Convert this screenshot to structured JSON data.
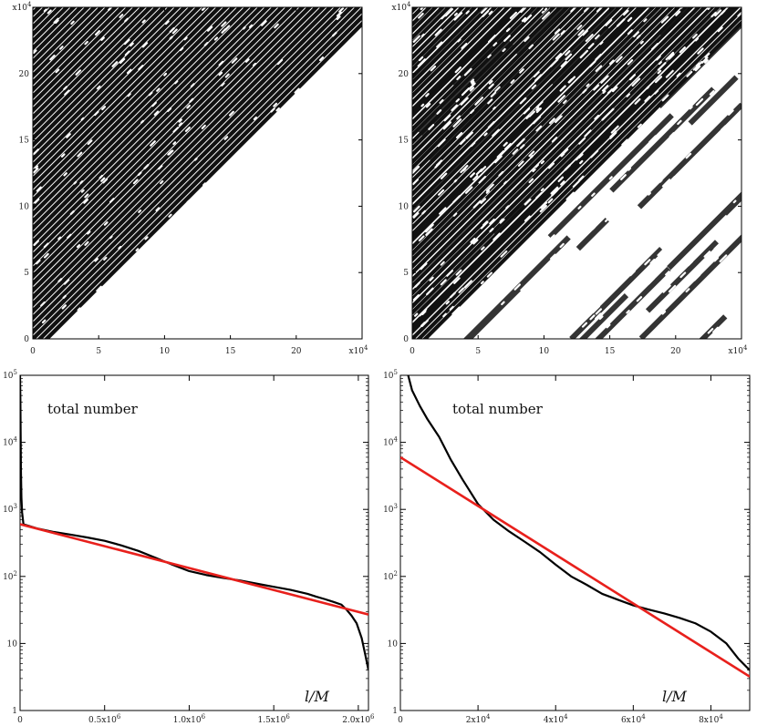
{
  "chart_data": [
    {
      "type": "heatmap",
      "panel": "top-left",
      "description_ticks": true,
      "xlim": [
        0,
        25
      ],
      "ylim": [
        0,
        25
      ],
      "x_ticks": [
        0,
        5,
        10,
        15,
        20
      ],
      "y_ticks": [
        0,
        5,
        10,
        15,
        20
      ],
      "x_multiplier": "x10",
      "x_multiplier_exp": "4",
      "y_multiplier": "x10",
      "y_multiplier_exp": "4",
      "pattern": "dense diagonal stripes with scattered white dots"
    },
    {
      "type": "heatmap",
      "panel": "top-right",
      "xlim": [
        0,
        25
      ],
      "ylim": [
        0,
        25
      ],
      "x_ticks": [
        0,
        5,
        10,
        15,
        20
      ],
      "y_ticks": [
        0,
        5,
        10,
        15,
        20
      ],
      "x_multiplier": "x10",
      "x_multiplier_exp": "4",
      "y_multiplier": "x10",
      "y_multiplier_exp": "4",
      "pattern": "irregular diagonal stripes with many white gaps"
    },
    {
      "type": "line",
      "panel": "bottom-left",
      "annotation": "total number",
      "xlabel": "l/M",
      "yscale": "log",
      "ylim": [
        1,
        100000
      ],
      "xlim": [
        0,
        2060000
      ],
      "x_ticks": [
        {
          "value": 0,
          "base": "0",
          "exp": ""
        },
        {
          "value": 500000,
          "base": "0.5x10",
          "exp": "6"
        },
        {
          "value": 1000000,
          "base": "1.0x10",
          "exp": "6"
        },
        {
          "value": 1500000,
          "base": "1.5x10",
          "exp": "6"
        },
        {
          "value": 2000000,
          "base": "2.0x10",
          "exp": "6"
        }
      ],
      "y_ticks": [
        {
          "value": 1,
          "base": "1",
          "exp": ""
        },
        {
          "value": 10,
          "base": "10",
          "exp": ""
        },
        {
          "value": 100,
          "base": "10",
          "exp": "2"
        },
        {
          "value": 1000,
          "base": "10",
          "exp": "3"
        },
        {
          "value": 10000,
          "base": "10",
          "exp": "4"
        },
        {
          "value": 100000,
          "base": "10",
          "exp": "5"
        }
      ],
      "series": [
        {
          "name": "data",
          "color": "#000000",
          "x": [
            0,
            2000,
            5000,
            8000,
            12000,
            20000,
            100000,
            200000,
            300000,
            400000,
            500000,
            600000,
            700000,
            800000,
            900000,
            1000000,
            1100000,
            1200000,
            1300000,
            1400000,
            1500000,
            1600000,
            1700000,
            1750000,
            1800000,
            1850000,
            1900000,
            1930000,
            1960000,
            1990000,
            2020000,
            2040000,
            2060000
          ],
          "y": [
            100000,
            40000,
            4000,
            1500,
            900,
            600,
            520,
            460,
            420,
            380,
            340,
            290,
            240,
            190,
            150,
            120,
            105,
            95,
            87,
            78,
            70,
            63,
            55,
            50,
            46,
            42,
            38,
            32,
            26,
            20,
            12,
            7,
            4
          ]
        },
        {
          "name": "fit",
          "color": "#e8201c",
          "x": [
            0,
            2060000
          ],
          "y": [
            600,
            27
          ]
        }
      ]
    },
    {
      "type": "line",
      "panel": "bottom-right",
      "annotation": "total number",
      "xlabel": "l/M",
      "yscale": "log",
      "ylim": [
        1,
        100000
      ],
      "xlim": [
        0,
        90000
      ],
      "x_ticks": [
        {
          "value": 0,
          "base": "0",
          "exp": ""
        },
        {
          "value": 20000,
          "base": "2x10",
          "exp": "4"
        },
        {
          "value": 40000,
          "base": "4x10",
          "exp": "4"
        },
        {
          "value": 60000,
          "base": "6x10",
          "exp": "4"
        },
        {
          "value": 80000,
          "base": "8x10",
          "exp": "4"
        }
      ],
      "y_ticks": [
        {
          "value": 1,
          "base": "1",
          "exp": ""
        },
        {
          "value": 10,
          "base": "10",
          "exp": ""
        },
        {
          "value": 100,
          "base": "10",
          "exp": "2"
        },
        {
          "value": 1000,
          "base": "10",
          "exp": "3"
        },
        {
          "value": 10000,
          "base": "10",
          "exp": "4"
        },
        {
          "value": 100000,
          "base": "10",
          "exp": "5"
        }
      ],
      "series": [
        {
          "name": "data",
          "color": "#000000",
          "x": [
            2000,
            3000,
            5000,
            7000,
            10000,
            13000,
            16000,
            20000,
            24000,
            28000,
            32000,
            36000,
            40000,
            44000,
            48000,
            52000,
            56000,
            60000,
            64000,
            68000,
            72000,
            76000,
            80000,
            84000,
            87000,
            90000
          ],
          "y": [
            100000,
            60000,
            35000,
            22000,
            12000,
            5500,
            2800,
            1200,
            700,
            470,
            330,
            230,
            150,
            100,
            75,
            55,
            45,
            37,
            32,
            28,
            24,
            20,
            15,
            10,
            6,
            4
          ]
        },
        {
          "name": "fit",
          "color": "#e8201c",
          "x": [
            0,
            90000
          ],
          "y": [
            6000,
            3.2
          ]
        }
      ]
    }
  ]
}
